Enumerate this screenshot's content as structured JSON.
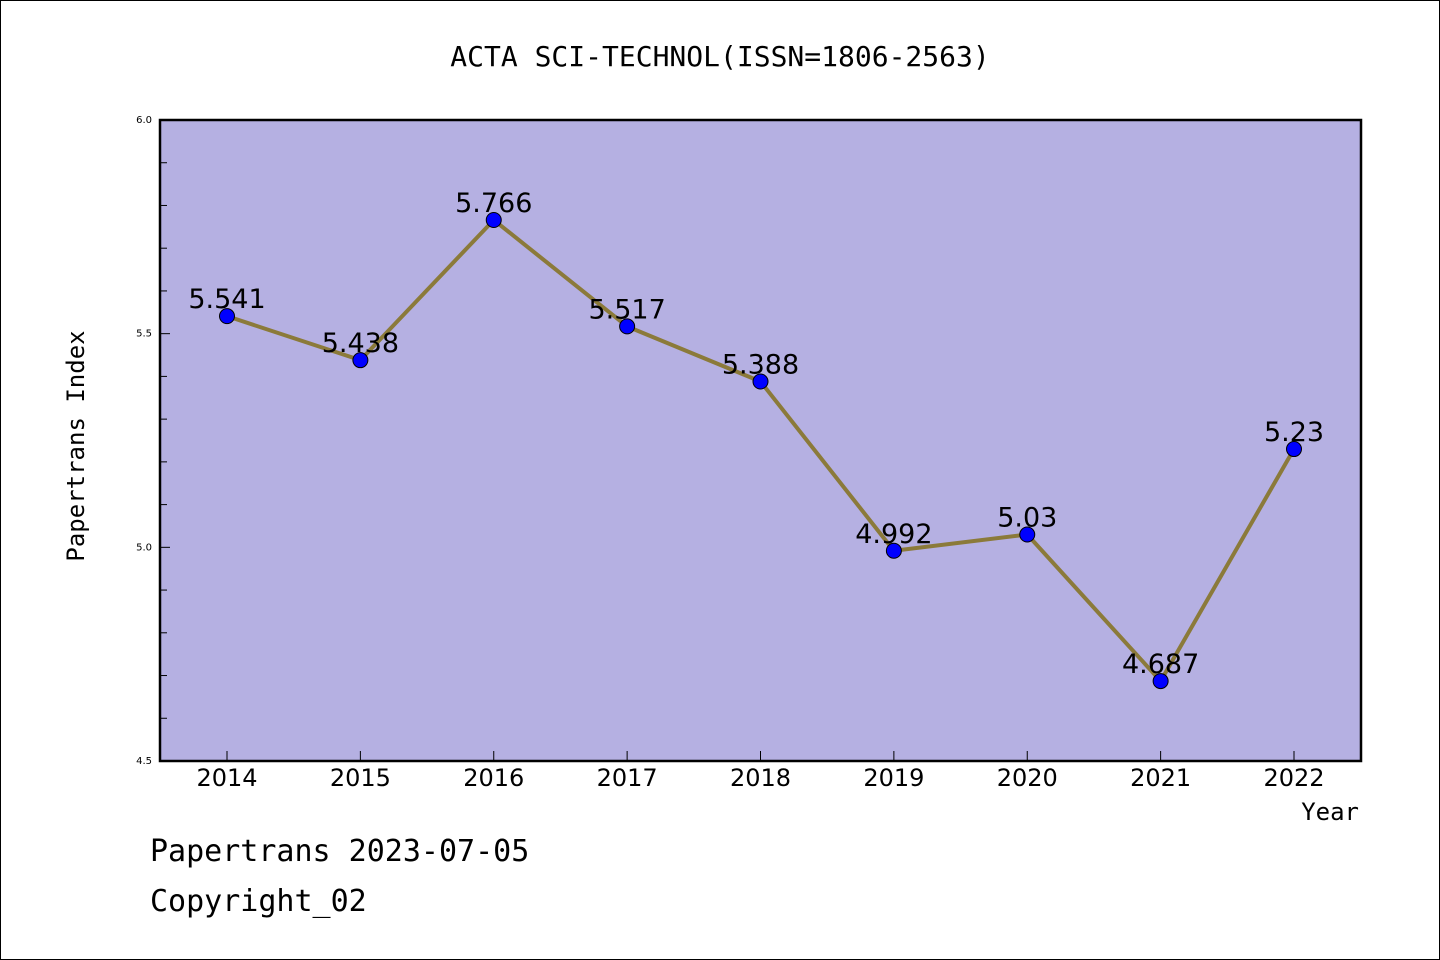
{
  "chart_data": {
    "type": "line",
    "title": "ACTA SCI-TECHNOL(ISSN=1806-2563)",
    "xlabel": "Year",
    "ylabel": "Papertrans Index",
    "categories": [
      "2014",
      "2015",
      "2016",
      "2017",
      "2018",
      "2019",
      "2020",
      "2021",
      "2022"
    ],
    "series": [
      {
        "values": [
          5.541,
          5.438,
          5.766,
          5.517,
          5.388,
          4.992,
          5.03,
          4.687,
          5.23
        ],
        "labels": [
          "5.541",
          "5.438",
          "5.766",
          "5.517",
          "5.388",
          "4.992",
          "5.03",
          "4.687",
          "5.23"
        ]
      }
    ],
    "ylim": [
      4.5,
      6.0
    ],
    "yticks": [
      4.5,
      5.0,
      5.5,
      6.0
    ],
    "ytick_labels": [
      "4.5",
      "5.0",
      "5.5",
      "6.0"
    ],
    "grid": false,
    "colors": {
      "plot_background": "#b5b0e2",
      "line": "#8b7a3a",
      "marker": "#0000ff"
    }
  },
  "footer": {
    "line1": "Papertrans 2023-07-05",
    "line2": "Copyright_02"
  }
}
